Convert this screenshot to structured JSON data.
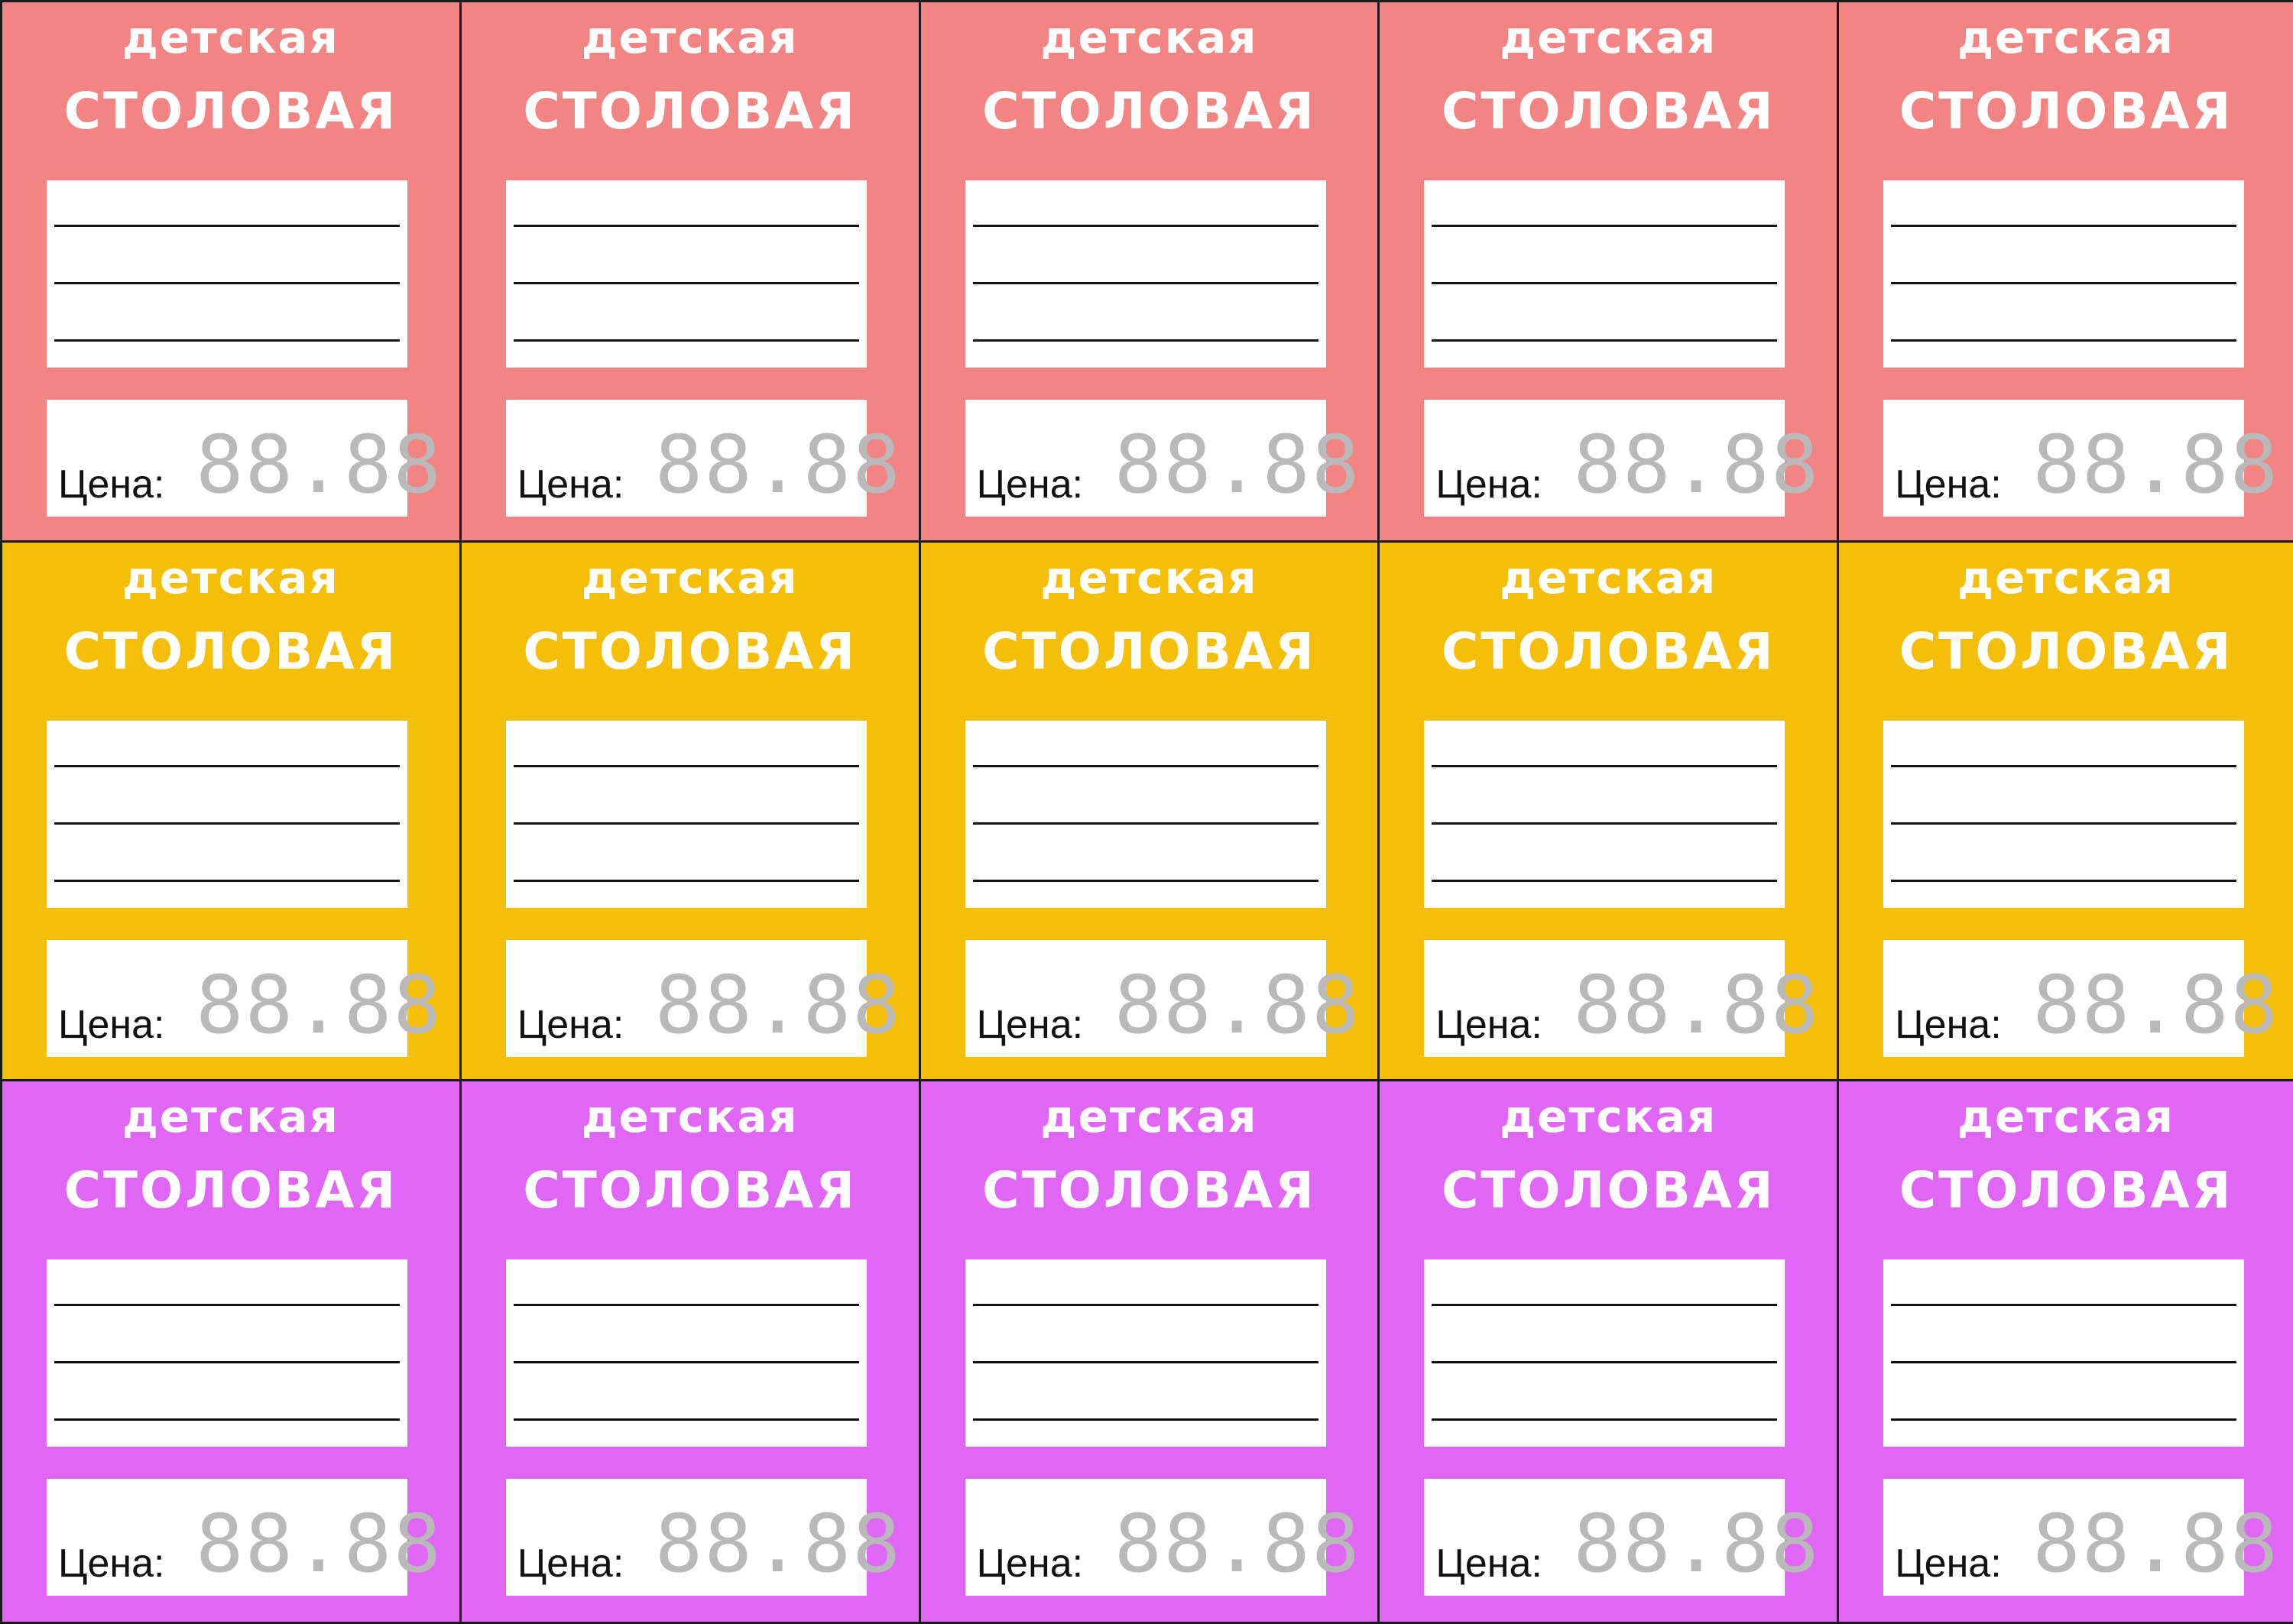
{
  "sheet": {
    "title_line1": "детская",
    "title_line2": "СТОЛОВАЯ",
    "price_label": "Цена:",
    "price_placeholder": "88.88",
    "name_line_count": 3,
    "columns": 5,
    "rows": [
      {
        "name": "coral",
        "color": "#f28583"
      },
      {
        "name": "amber",
        "color": "#f5be08"
      },
      {
        "name": "violet",
        "color": "#e067f5"
      }
    ]
  }
}
